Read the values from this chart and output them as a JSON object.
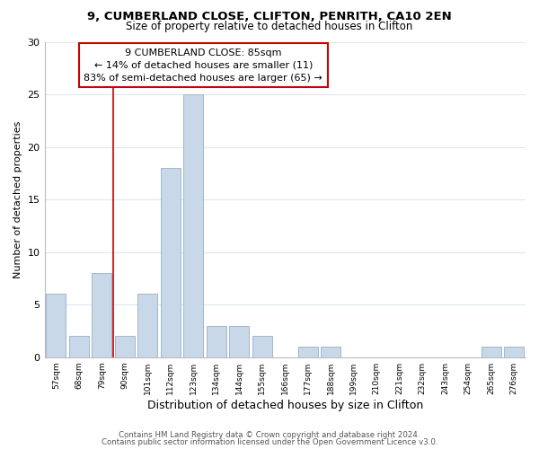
{
  "title1": "9, CUMBERLAND CLOSE, CLIFTON, PENRITH, CA10 2EN",
  "title2": "Size of property relative to detached houses in Clifton",
  "xlabel": "Distribution of detached houses by size in Clifton",
  "ylabel": "Number of detached properties",
  "bar_labels": [
    "57sqm",
    "68sqm",
    "79sqm",
    "90sqm",
    "101sqm",
    "112sqm",
    "123sqm",
    "134sqm",
    "144sqm",
    "155sqm",
    "166sqm",
    "177sqm",
    "188sqm",
    "199sqm",
    "210sqm",
    "221sqm",
    "232sqm",
    "243sqm",
    "254sqm",
    "265sqm",
    "276sqm"
  ],
  "bar_values": [
    6,
    2,
    8,
    2,
    6,
    18,
    25,
    3,
    3,
    2,
    0,
    1,
    1,
    0,
    0,
    0,
    0,
    0,
    0,
    1,
    1
  ],
  "bar_color": "#c8d8e8",
  "bar_edge_color": "#a0b8cc",
  "property_line_x": 2.5,
  "property_line_color": "#cc0000",
  "annotation_title": "9 CUMBERLAND CLOSE: 85sqm",
  "annotation_line1": "← 14% of detached houses are smaller (11)",
  "annotation_line2": "83% of semi-detached houses are larger (65) →",
  "annotation_box_color": "#ffffff",
  "annotation_box_edge": "#cc0000",
  "ylim": [
    0,
    30
  ],
  "yticks": [
    0,
    5,
    10,
    15,
    20,
    25,
    30
  ],
  "footer1": "Contains HM Land Registry data © Crown copyright and database right 2024.",
  "footer2": "Contains public sector information licensed under the Open Government Licence v3.0.",
  "background_color": "#ffffff",
  "grid_color": "#dde8f0"
}
